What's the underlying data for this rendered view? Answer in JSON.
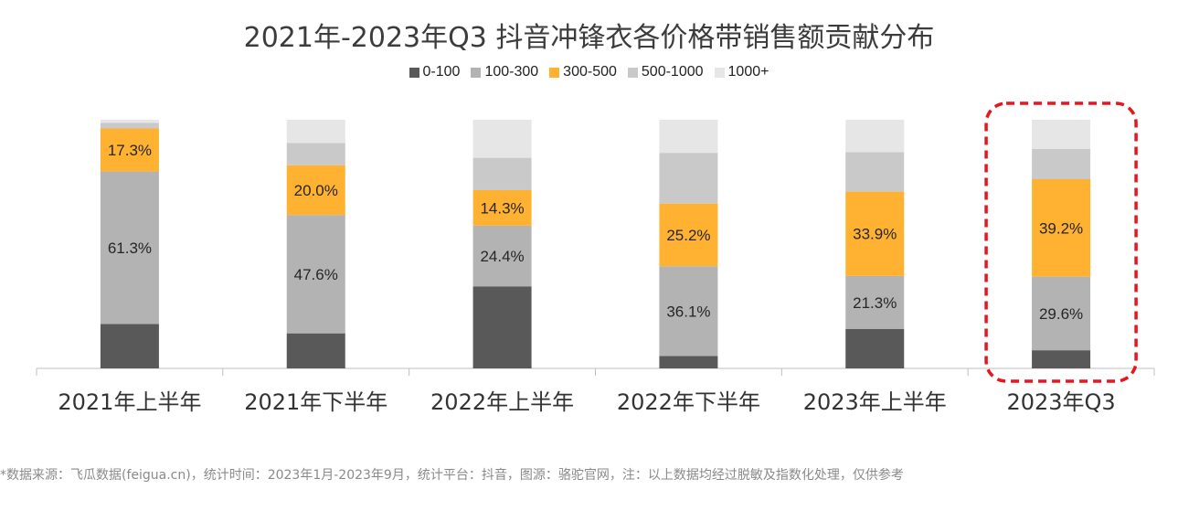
{
  "chart_data": {
    "type": "bar",
    "stacked": true,
    "title": "2021年-2023年Q3 抖音冲锋衣各价格带销售额贡献分布",
    "categories": [
      "2021年上半年",
      "2021年下半年",
      "2022年上半年",
      "2022年下半年",
      "2023年上半年",
      "2023年Q3"
    ],
    "series": [
      {
        "name": "0-100",
        "color": "#595959",
        "values": [
          17.9,
          14.1,
          33.0,
          5.0,
          15.9,
          7.3
        ]
      },
      {
        "name": "100-300",
        "color": "#b3b3b3",
        "values": [
          61.3,
          47.6,
          24.4,
          36.1,
          21.3,
          29.6
        ]
      },
      {
        "name": "300-500",
        "color": "#ffb232",
        "values": [
          17.3,
          20.0,
          14.3,
          25.2,
          33.9,
          39.2
        ]
      },
      {
        "name": "500-1000",
        "color": "#c9c9c9",
        "values": [
          2.3,
          9.0,
          13.0,
          20.4,
          15.9,
          12.2
        ]
      },
      {
        "name": "1000+",
        "color": "#e6e6e6",
        "values": [
          1.2,
          9.3,
          15.3,
          13.3,
          13.0,
          11.7
        ]
      }
    ],
    "data_labels": [
      {
        "series": "100-300",
        "category": 0,
        "text": "61.3%"
      },
      {
        "series": "300-500",
        "category": 0,
        "text": "17.3%"
      },
      {
        "series": "100-300",
        "category": 1,
        "text": "47.6%"
      },
      {
        "series": "300-500",
        "category": 1,
        "text": "20.0%"
      },
      {
        "series": "100-300",
        "category": 2,
        "text": "24.4%"
      },
      {
        "series": "300-500",
        "category": 2,
        "text": "14.3%"
      },
      {
        "series": "100-300",
        "category": 3,
        "text": "36.1%"
      },
      {
        "series": "300-500",
        "category": 3,
        "text": "25.2%"
      },
      {
        "series": "100-300",
        "category": 4,
        "text": "21.3%"
      },
      {
        "series": "300-500",
        "category": 4,
        "text": "33.9%"
      },
      {
        "series": "100-300",
        "category": 5,
        "text": "29.6%"
      },
      {
        "series": "300-500",
        "category": 5,
        "text": "39.2%"
      }
    ],
    "ylim": [
      0,
      100
    ],
    "grid": false,
    "legend_position": "top",
    "highlight": {
      "category": 5,
      "style": "red dashed rounded box",
      "color": "#e8141e"
    }
  },
  "footnote": "*数据来源：飞瓜数据(feigua.cn)，统计时间：2023年1月-2023年9月，统计平台：抖音，图源：骆驼官网，注：以上数据均经过脱敏及指数化处理，仅供参考"
}
